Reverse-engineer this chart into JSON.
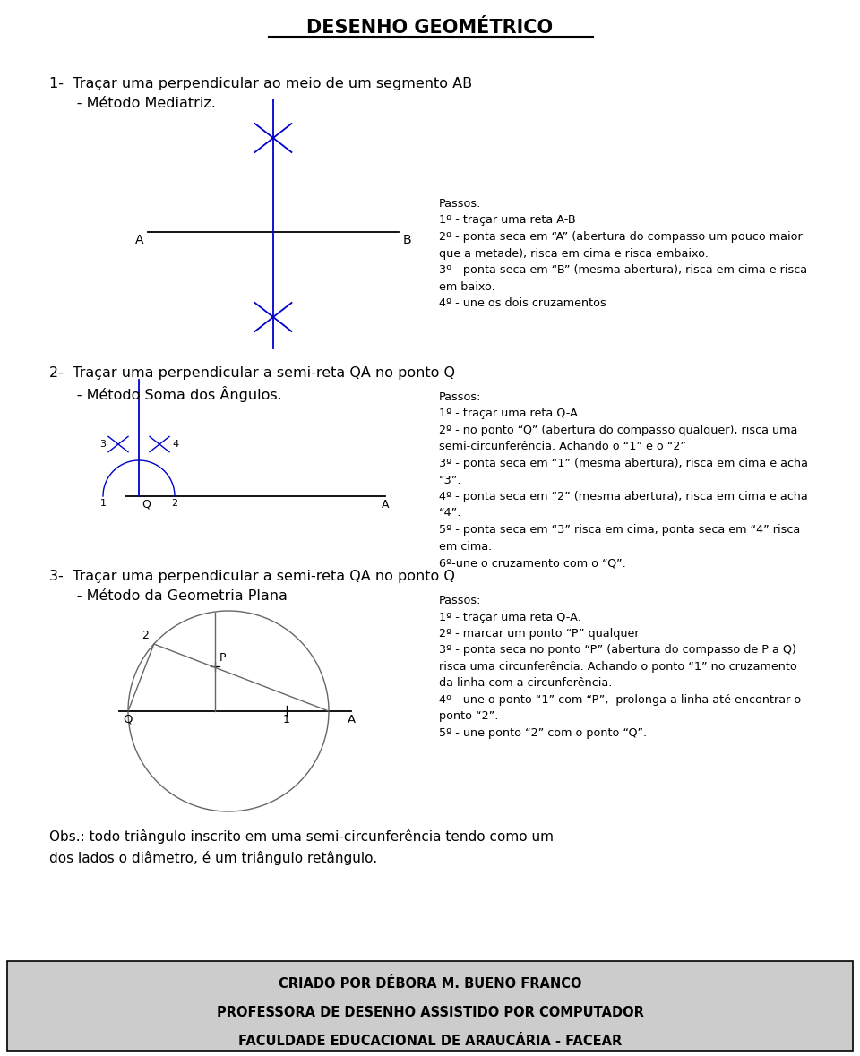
{
  "title": "DESENHO GEOMÉTRICO",
  "bg_color": "#ffffff",
  "blue": "#0000cc",
  "black": "#000000",
  "gray": "#666666",
  "footer_bg": "#cccccc",
  "footer_lines": [
    "CRIADO POR DÉBORA M. BUENO FRANCO",
    "PROFESSORA DE DESENHO ASSISTIDO POR COMPUTADOR",
    "FACULDADE EDUCACIONAL DE ARAUCÁRIA - FACEAR"
  ],
  "s1_title": "1-  Traçar uma perpendicular ao meio de um segmento AB",
  "s1_sub": "      - Método Mediatriz.",
  "s2_title": "2-  Traçar uma perpendicular a semi-reta QA no ponto Q",
  "s2_sub": "      - Método Soma dos Ângulos.",
  "s3_title": "3-  Traçar uma perpendicular a semi-reta QA no ponto Q",
  "s3_sub": "      - Método da Geometria Plana",
  "passos1": "Passos:\n1º - traçar uma reta A-B\n2º - ponta seca em “A” (abertura do compasso um pouco maior\nque a metade), risca em cima e risca embaixo.\n3º - ponta seca em “B” (mesma abertura), risca em cima e risca\nem baixo.\n4º - une os dois cruzamentos",
  "passos2": "Passos:\n1º - traçar uma reta Q-A.\n2º - no ponto “Q” (abertura do compasso qualquer), risca uma\nsemi-circunferência. Achando o “1” e o “2”\n3º - ponta seca em “1” (mesma abertura), risca em cima e acha\n“3”.\n4º - ponta seca em “2” (mesma abertura), risca em cima e acha\n“4”.\n5º - ponta seca em “3” risca em cima, ponta seca em “4” risca\nem cima.\n6º-une o cruzamento com o “Q”.",
  "passos3": "Passos:\n1º - traçar uma reta Q-A.\n2º - marcar um ponto “P” qualquer\n3º - ponta seca no ponto “P” (abertura do compasso de P a Q)\nrisca uma circunferência. Achando o ponto “1” no cruzamento\nda linha com a circunferência.\n4º - une o ponto “1” com “P”,  prolonga a linha até encontrar o\nponto “2”.\n5º - une ponto “2” com o ponto “Q”.",
  "obs": "Obs.: todo triângulo inscrito em uma semi-circunferência tendo como um\ndos lados o diâmetro, é um triângulo retângulo."
}
